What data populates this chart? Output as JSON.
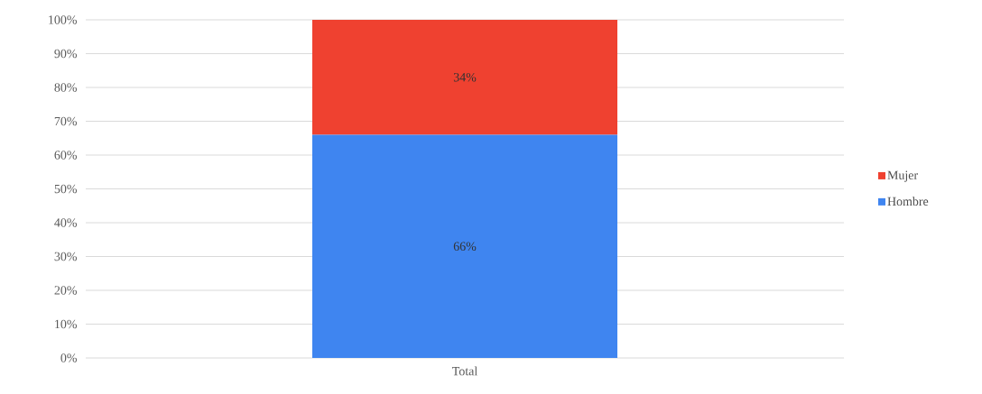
{
  "chart_data": {
    "type": "bar",
    "stacked": true,
    "categories": [
      "Total"
    ],
    "series": [
      {
        "name": "Hombre",
        "color": "#3f85f0",
        "values": [
          66
        ],
        "value_labels": [
          "66%"
        ]
      },
      {
        "name": "Mujer",
        "color": "#ef4130",
        "values": [
          34
        ],
        "value_labels": [
          "34%"
        ]
      }
    ],
    "ylim": [
      0,
      100
    ],
    "yticks": [
      {
        "value": 0,
        "label": "0%"
      },
      {
        "value": 10,
        "label": "10%"
      },
      {
        "value": 20,
        "label": "20%"
      },
      {
        "value": 30,
        "label": "30%"
      },
      {
        "value": 40,
        "label": "40%"
      },
      {
        "value": 50,
        "label": "50%"
      },
      {
        "value": 60,
        "label": "60%"
      },
      {
        "value": 70,
        "label": "70%"
      },
      {
        "value": 80,
        "label": "80%"
      },
      {
        "value": 90,
        "label": "90%"
      },
      {
        "value": 100,
        "label": "100%"
      }
    ],
    "grid": "y",
    "legend": "right"
  }
}
